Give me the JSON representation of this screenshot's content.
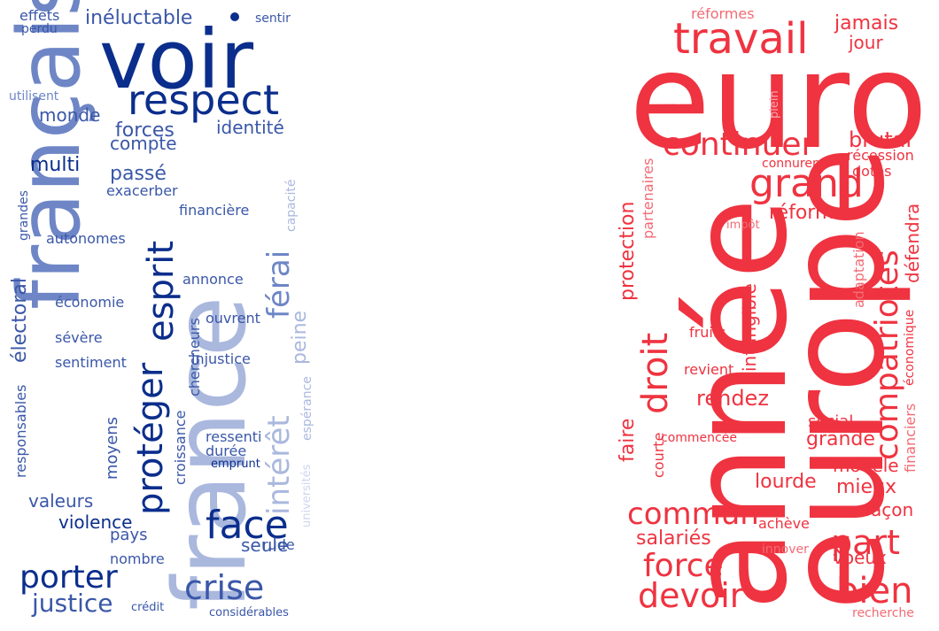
{
  "colors": {
    "blue_dark": "#0b2e8c",
    "blue_mid": "#3a57a8",
    "blue_light": "#6e86c6",
    "blue_pale": "#aab8de",
    "blue_faint": "#cdd6ee",
    "red_main": "#ef3340",
    "red_light": "#f26b74",
    "red_pale": "#f7a7ad"
  },
  "left_cloud": {
    "words": [
      "voir",
      "français",
      "france",
      "respect",
      "face",
      "crise",
      "porter",
      "justice",
      "protéger",
      "esprit",
      "intérêt",
      "férai",
      "peine",
      "identité",
      "forces",
      "compte",
      "monde",
      "multi",
      "passé",
      "inéluctable",
      "effets",
      "perdu",
      "sentir",
      "utilisent",
      "grandes",
      "électoral",
      "autonomes",
      "exacerber",
      "financière",
      "capacité",
      "économie",
      "annonce",
      "sévère",
      "ouvrent",
      "sentiment",
      "injustice",
      "responsables",
      "croissance",
      "chercheurs",
      "moyens",
      "ressenti",
      "espérance",
      "durée",
      "emprunt",
      "universités",
      "valeurs",
      "violence",
      "pays",
      "nombre",
      "seule",
      "rude",
      "crédit",
      "considérables"
    ]
  },
  "right_cloud": {
    "words": [
      "euro",
      "année",
      "europe",
      "travail",
      "réformes",
      "jamais",
      "jour",
      "continuer",
      "grand",
      "brutal",
      "récession",
      "connurent",
      "dotés",
      "réforme",
      "compatriotes",
      "défendra",
      "droit",
      "protection",
      "partenaires",
      "plein",
      "impôt",
      "adaptation",
      "économique",
      "financiers",
      "fruits",
      "intangible",
      "revient",
      "rendez",
      "social",
      "faire",
      "courte",
      "commencée",
      "grande",
      "modèle",
      "mieux",
      "lourde",
      "commun",
      "façon",
      "part",
      "salariés",
      "achève",
      "force",
      "innover",
      "voeux",
      "devoir",
      "bien",
      "recherche"
    ]
  }
}
